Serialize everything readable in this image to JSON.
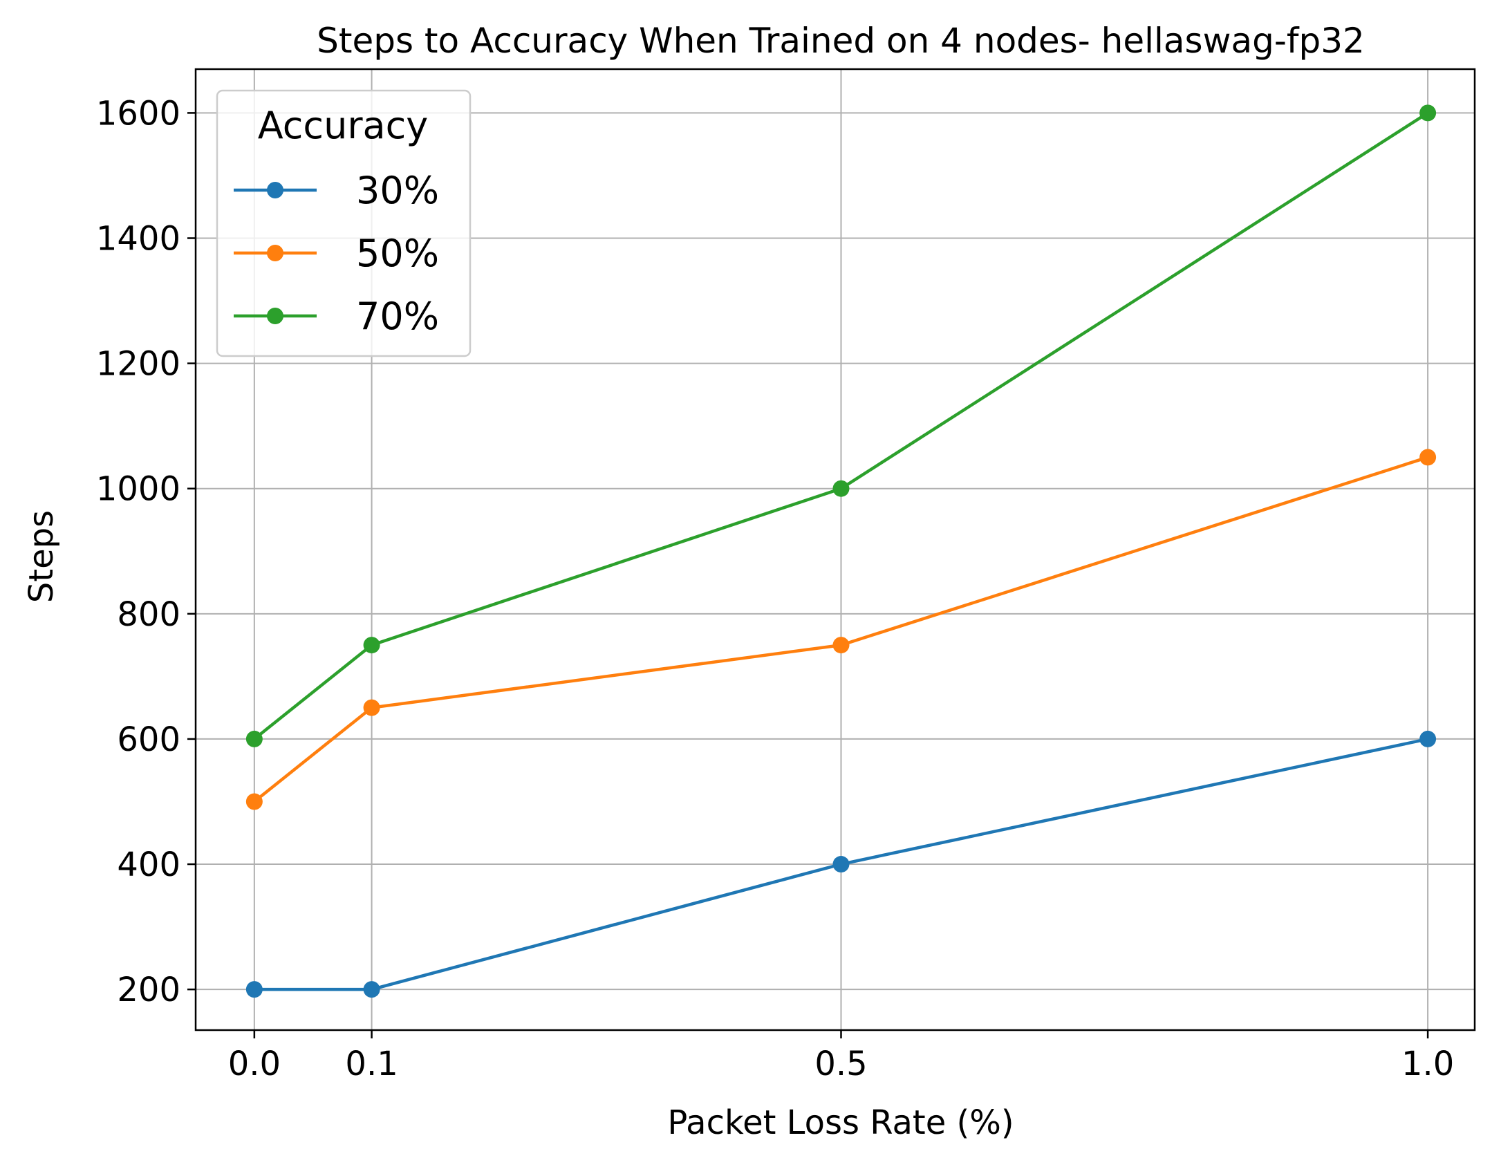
{
  "chart_data": {
    "type": "line",
    "title": "Steps to Accuracy When Trained on 4 nodes- hellaswag-fp32",
    "xlabel": "Packet Loss Rate (%)",
    "ylabel": "Steps",
    "x": [
      0.0,
      0.1,
      0.5,
      1.0
    ],
    "x_tick_labels": [
      "0.0",
      "0.1",
      "0.5",
      "1.0"
    ],
    "y_ticks": [
      200,
      400,
      600,
      800,
      1000,
      1200,
      1400,
      1600
    ],
    "xlim": [
      -0.05,
      1.04
    ],
    "ylim": [
      135,
      1670
    ],
    "grid": true,
    "legend": {
      "title": "Accuracy",
      "placement": "upper left"
    },
    "series": [
      {
        "name": "30%",
        "color": "#1f77b4",
        "values": [
          200,
          200,
          400,
          600
        ]
      },
      {
        "name": "50%",
        "color": "#ff7f0e",
        "values": [
          500,
          650,
          750,
          1050
        ]
      },
      {
        "name": "70%",
        "color": "#2ca02c",
        "values": [
          600,
          750,
          1000,
          1600
        ]
      }
    ]
  }
}
